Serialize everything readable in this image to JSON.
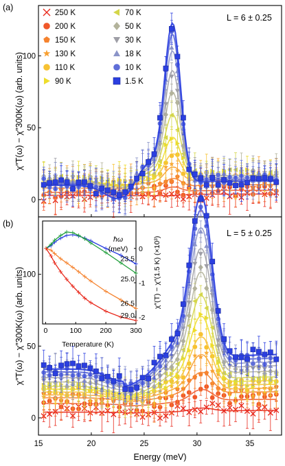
{
  "panel_a": {
    "tag": "(a)",
    "annotation": "L = 6 ± 0.25",
    "ylabel": "χ″T(ω) − χ″300K(ω) (arb. units)"
  },
  "panel_b": {
    "tag": "(b)",
    "annotation": "L = 5 ± 0.25",
    "ylabel": "χ″T(ω) − χ″300K(ω) (arb. units)"
  },
  "shared": {
    "xlabel": "Energy (meV)"
  },
  "inset": {
    "xlabel": "Temperature (K)",
    "ylabel": "χ″(T) − χ″(1.5 K) (×10³)",
    "legend_title": "ħω",
    "legend_unit": "(meV)"
  },
  "chart_data": [
    {
      "id": "panel-a",
      "type": "scatter",
      "x_range": [
        15,
        38
      ],
      "y_range": [
        -12,
        135
      ],
      "x_ticks": [
        15,
        20,
        25,
        30,
        35
      ],
      "y_ticks": [
        0,
        50,
        100
      ],
      "series": [
        {
          "name": "250 K",
          "color": "#e8291c",
          "marker": "x",
          "peak": 0,
          "base": 3
        },
        {
          "name": "200 K",
          "color": "#f0582a",
          "marker": "circle",
          "peak": 4,
          "base": 5
        },
        {
          "name": "150 K",
          "color": "#f5832f",
          "marker": "pentagon",
          "peak": 7,
          "base": 8
        },
        {
          "name": "130 K",
          "color": "#f8a031",
          "marker": "star",
          "peak": 12,
          "base": 11
        },
        {
          "name": "110 K",
          "color": "#f7c233",
          "marker": "circle",
          "peak": 20,
          "base": 12
        },
        {
          "name": "90 K",
          "color": "#eedd2c",
          "marker": "tri-right",
          "peak": 30,
          "base": 13
        },
        {
          "name": "70 K",
          "color": "#d4d64a",
          "marker": "tri-left",
          "peak": 45,
          "base": 13
        },
        {
          "name": "50 K",
          "color": "#b3b39b",
          "marker": "diamond",
          "peak": 60,
          "base": 13
        },
        {
          "name": "30 K",
          "color": "#9e9ea6",
          "marker": "tri-down",
          "peak": 75,
          "base": 12
        },
        {
          "name": "18 K",
          "color": "#8b94c8",
          "marker": "tri-up",
          "peak": 88,
          "base": 12
        },
        {
          "name": "10 K",
          "color": "#5f6ed8",
          "marker": "circle",
          "peak": 100,
          "base": 11
        },
        {
          "name": "1.5 K",
          "color": "#2b3fe0",
          "marker": "square",
          "peak": 108,
          "base": 10
        }
      ],
      "peak_center": 27.7,
      "peak_width": 0.75,
      "dip_center": 23.0,
      "dip_depth": 12
    },
    {
      "id": "panel-b",
      "type": "scatter",
      "x_range": [
        15,
        38
      ],
      "y_range": [
        -12,
        140
      ],
      "x_ticks": [
        15,
        20,
        25,
        30,
        35
      ],
      "y_ticks": [
        0,
        50,
        100
      ],
      "series": [
        {
          "name": "250 K",
          "color": "#e8291c",
          "marker": "x",
          "peak": 3,
          "base": 4
        },
        {
          "name": "200 K",
          "color": "#f0582a",
          "marker": "circle",
          "peak": 10,
          "base": 10
        },
        {
          "name": "150 K",
          "color": "#f5832f",
          "marker": "pentagon",
          "peak": 18,
          "base": 14
        },
        {
          "name": "130 K",
          "color": "#f8a031",
          "marker": "star",
          "peak": 28,
          "base": 16
        },
        {
          "name": "110 K",
          "color": "#f7c233",
          "marker": "circle",
          "peak": 38,
          "base": 18
        },
        {
          "name": "90 K",
          "color": "#eedd2c",
          "marker": "tri-right",
          "peak": 50,
          "base": 20
        },
        {
          "name": "70 K",
          "color": "#d4d64a",
          "marker": "tri-left",
          "peak": 62,
          "base": 22
        },
        {
          "name": "50 K",
          "color": "#b3b39b",
          "marker": "diamond",
          "peak": 75,
          "base": 25
        },
        {
          "name": "30 K",
          "color": "#9e9ea6",
          "marker": "tri-down",
          "peak": 88,
          "base": 28
        },
        {
          "name": "18 K",
          "color": "#8b94c8",
          "marker": "tri-up",
          "peak": 100,
          "base": 30
        },
        {
          "name": "10 K",
          "color": "#5f6ed8",
          "marker": "circle",
          "peak": 110,
          "base": 32
        },
        {
          "name": "1.5 K",
          "color": "#2b3fe0",
          "marker": "square",
          "peak": 118,
          "base": 34
        }
      ],
      "peak_center": 30.4,
      "peak_width": 1.0,
      "dip_center": 23.0,
      "dip_depth": 8
    },
    {
      "id": "inset",
      "type": "line",
      "x_range": [
        -10,
        300
      ],
      "y_range": [
        -2.2,
        0.8
      ],
      "x_ticks": [
        0,
        100,
        200,
        300
      ],
      "y_ticks": [
        0,
        -1,
        -2
      ],
      "series": [
        {
          "name": "23.5",
          "color": "#2b3fe0",
          "x": [
            1.5,
            18,
            30,
            50,
            70,
            90,
            110,
            130,
            150,
            200,
            250,
            300
          ],
          "y": [
            0.0,
            0.08,
            0.18,
            0.3,
            0.38,
            0.4,
            0.36,
            0.3,
            0.22,
            0.0,
            -0.2,
            -0.45
          ]
        },
        {
          "name": "25.0",
          "color": "#1f9e3a",
          "x": [
            1.5,
            18,
            30,
            50,
            70,
            90,
            110,
            130,
            150,
            200,
            250,
            300
          ],
          "y": [
            0.0,
            0.12,
            0.24,
            0.38,
            0.48,
            0.46,
            0.38,
            0.28,
            0.16,
            -0.12,
            -0.42,
            -0.72
          ]
        },
        {
          "name": "26.5",
          "color": "#f5832f",
          "x": [
            1.5,
            18,
            30,
            50,
            70,
            90,
            110,
            130,
            150,
            200,
            250,
            300
          ],
          "y": [
            0.0,
            -0.05,
            -0.15,
            -0.3,
            -0.42,
            -0.55,
            -0.68,
            -0.82,
            -0.95,
            -1.25,
            -1.5,
            -1.75
          ]
        },
        {
          "name": "29.0",
          "color": "#e8291c",
          "x": [
            1.5,
            18,
            30,
            50,
            70,
            90,
            110,
            130,
            150,
            200,
            250,
            300
          ],
          "y": [
            0.0,
            -0.22,
            -0.42,
            -0.68,
            -0.9,
            -1.1,
            -1.28,
            -1.45,
            -1.58,
            -1.83,
            -2.0,
            -2.1
          ]
        }
      ]
    }
  ]
}
